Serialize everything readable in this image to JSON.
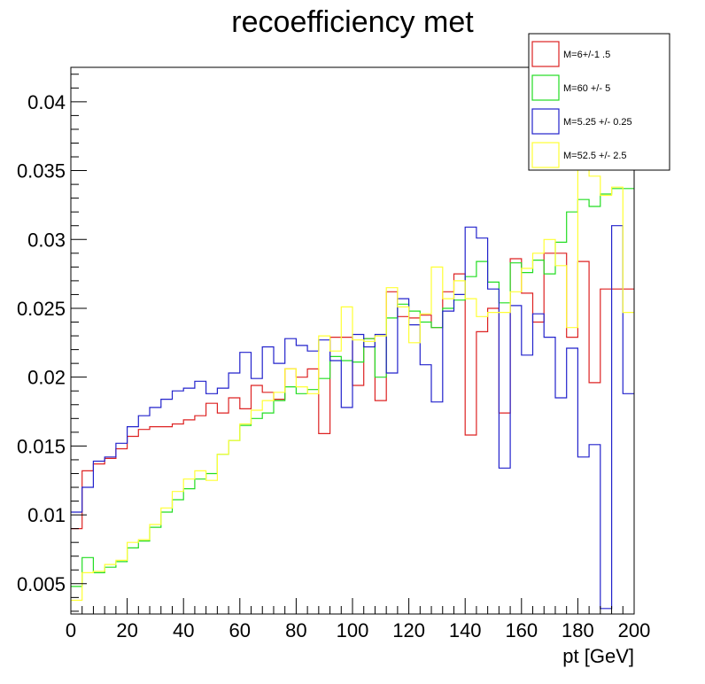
{
  "chart_data": {
    "type": "step",
    "title": "recoefficiency met",
    "xlabel": "pt [GeV]",
    "ylabel": "",
    "xlim": [
      0,
      200
    ],
    "ylim": [
      0.0028,
      0.0425
    ],
    "x_ticks": [
      "0",
      "20",
      "40",
      "60",
      "80",
      "100",
      "120",
      "140",
      "160",
      "180",
      "200"
    ],
    "y_ticks": [
      "0.005",
      "0.01",
      "0.015",
      "0.02",
      "0.025",
      "0.03",
      "0.035",
      "0.04"
    ],
    "bin_width": 4,
    "bin_edges_start": 0,
    "series": [
      {
        "name": "M=6+/-1 .5",
        "color": "#dd2222",
        "values": [
          0.009,
          0.0132,
          0.0137,
          0.0141,
          0.0148,
          0.0157,
          0.0162,
          0.0164,
          0.0164,
          0.0166,
          0.0169,
          0.0172,
          0.0181,
          0.0174,
          0.0185,
          0.0177,
          0.0194,
          0.0189,
          0.0184,
          0.0206,
          0.02,
          0.0206,
          0.0159,
          0.0229,
          0.0229,
          0.0194,
          0.0228,
          0.0183,
          0.0262,
          0.0244,
          0.0243,
          0.0245,
          0.0236,
          0.0262,
          0.0275,
          0.0158,
          0.0233,
          0.025,
          0.0174,
          0.0286,
          0.0261,
          0.024,
          0.029,
          0.029,
          0.0229,
          0.0284,
          0.0196,
          0.0264,
          0.0264,
          0.0264
        ]
      },
      {
        "name": "M=60 +/- 5",
        "color": "#22dd22",
        "values": [
          0.0048,
          0.0069,
          0.0058,
          0.0062,
          0.0066,
          0.0076,
          0.0081,
          0.0091,
          0.0102,
          0.0111,
          0.0119,
          0.0126,
          0.013,
          0.0144,
          0.0154,
          0.0165,
          0.017,
          0.0174,
          0.0183,
          0.0193,
          0.0188,
          0.0191,
          0.0199,
          0.0215,
          0.0212,
          0.0211,
          0.0228,
          0.02,
          0.0243,
          0.0253,
          0.0248,
          0.024,
          0.0236,
          0.025,
          0.0256,
          0.0273,
          0.0284,
          0.0269,
          0.0254,
          0.0283,
          0.0276,
          0.0285,
          0.0275,
          0.0298,
          0.032,
          0.0329,
          0.0324,
          0.0333,
          0.0337,
          0.0337
        ]
      },
      {
        "name": "M=5.25 +/- 0.25",
        "color": "#2222cc",
        "values": [
          0.0102,
          0.012,
          0.0139,
          0.0142,
          0.0152,
          0.0164,
          0.0172,
          0.0178,
          0.0184,
          0.019,
          0.0192,
          0.0197,
          0.0188,
          0.0192,
          0.0203,
          0.0218,
          0.0199,
          0.0222,
          0.021,
          0.0228,
          0.0223,
          0.0219,
          0.0227,
          0.0212,
          0.0178,
          0.0231,
          0.0222,
          0.0231,
          0.0203,
          0.0257,
          0.0238,
          0.0209,
          0.0182,
          0.0248,
          0.026,
          0.0309,
          0.0301,
          0.0264,
          0.0134,
          0.0252,
          0.0216,
          0.0246,
          0.0229,
          0.0185,
          0.0221,
          0.0142,
          0.0151,
          0.0032,
          0.031,
          0.0188
        ]
      },
      {
        "name": "M=52.5 +/- 2.5",
        "color": "#ffff33",
        "values": [
          0.0038,
          0.0058,
          0.0059,
          0.0064,
          0.0067,
          0.008,
          0.0082,
          0.0093,
          0.0105,
          0.0117,
          0.0126,
          0.0132,
          0.0125,
          0.0144,
          0.0154,
          0.0166,
          0.0176,
          0.0183,
          0.0189,
          0.0206,
          0.0193,
          0.0188,
          0.023,
          0.0219,
          0.0251,
          0.0227,
          0.0226,
          0.023,
          0.0265,
          0.0251,
          0.0225,
          0.0246,
          0.028,
          0.0257,
          0.027,
          0.0257,
          0.0244,
          0.0247,
          0.0247,
          0.0262,
          0.0279,
          0.029,
          0.03,
          0.0281,
          0.0236,
          0.0366,
          0.0346,
          0.0332,
          0.0338,
          0.0247
        ]
      }
    ]
  }
}
